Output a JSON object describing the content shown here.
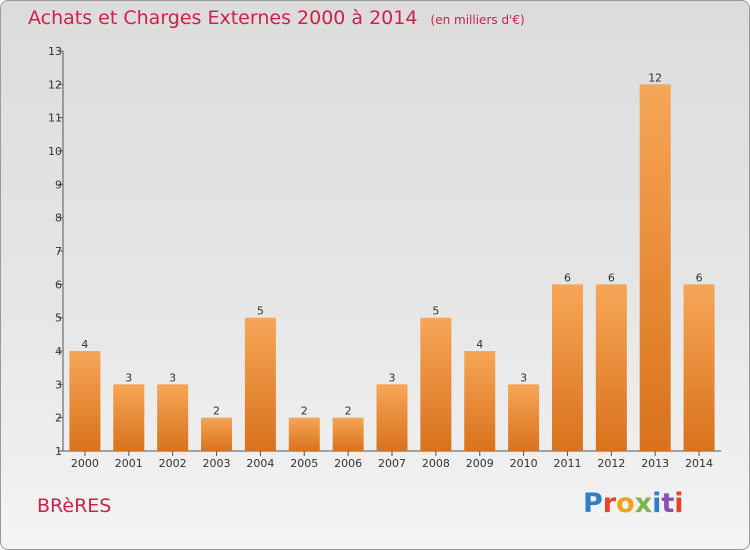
{
  "header": {
    "title": "Achats et Charges Externes 2000 à 2014",
    "subtitle": "(en milliers d'€)"
  },
  "footer": {
    "location": "BRèRES",
    "logo_text": "Proxiti",
    "logo_colors": [
      "#2f7fc8",
      "#e8432b",
      "#f2a21c",
      "#7ab648",
      "#2f7fc8",
      "#8a4fb0",
      "#e8432b"
    ]
  },
  "colors": {
    "title": "#d0204a",
    "bar_light": "#f6a657",
    "bar_dark": "#d9721c",
    "background_top": "#dcdcdc",
    "background_bottom": "#f4f4f4"
  },
  "chart_data": {
    "type": "bar",
    "title": "Achats et Charges Externes 2000 à 2014",
    "subtitle": "(en milliers d'€)",
    "xlabel": "",
    "ylabel": "",
    "categories": [
      "2000",
      "2001",
      "2002",
      "2003",
      "2004",
      "2005",
      "2006",
      "2007",
      "2008",
      "2009",
      "2010",
      "2011",
      "2012",
      "2013",
      "2014"
    ],
    "values": [
      4,
      3,
      3,
      2,
      5,
      2,
      2,
      3,
      5,
      4,
      3,
      6,
      6,
      12,
      6
    ],
    "ylim": [
      1,
      13
    ],
    "yticks": [
      1,
      2,
      3,
      4,
      5,
      6,
      7,
      8,
      9,
      10,
      11,
      12,
      13
    ],
    "data_labels": true,
    "grid": false
  }
}
